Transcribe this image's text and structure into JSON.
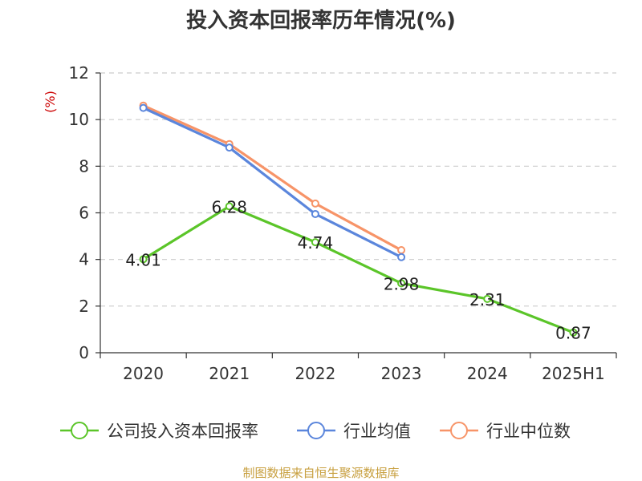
{
  "chart_data": {
    "type": "line",
    "title": "投入资本回报率历年情况(%)",
    "unit_label": "(%)",
    "categories": [
      "2020",
      "2021",
      "2022",
      "2023",
      "2024",
      "2025H1"
    ],
    "ylim": [
      0,
      12
    ],
    "yticks": [
      0,
      2,
      4,
      6,
      8,
      10,
      12
    ],
    "grid": true,
    "legend_position": "bottom",
    "series": [
      {
        "name": "公司投入资本回报率",
        "color": "#5bc529",
        "values": [
          4.01,
          6.28,
          4.74,
          2.98,
          2.31,
          0.87
        ],
        "labels": [
          "4.01",
          "6.28",
          "4.74",
          "2.98",
          "2.31",
          "0.87"
        ]
      },
      {
        "name": "行业均值",
        "color": "#5b86dc",
        "values": [
          10.5,
          8.8,
          5.95,
          4.1,
          null,
          null
        ]
      },
      {
        "name": "行业中位数",
        "color": "#f79468",
        "values": [
          10.6,
          8.95,
          6.4,
          4.4,
          null,
          null
        ]
      }
    ]
  },
  "source": "制图数据来自恒生聚源数据库",
  "colors": {
    "unit": "#cc0000",
    "source": "#c8a040",
    "grid": "#cccccc",
    "axis": "#333333"
  }
}
